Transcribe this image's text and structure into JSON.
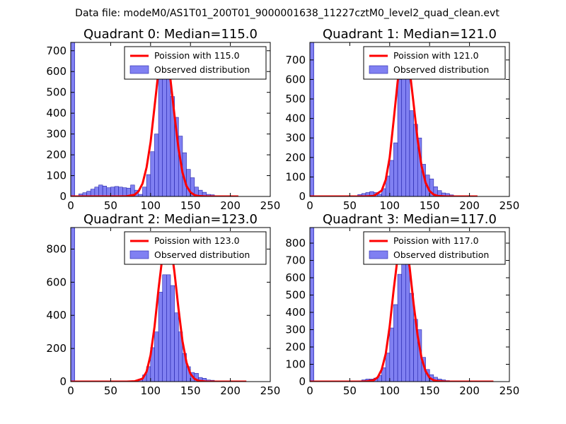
{
  "suptitle": "Data file: modeM0/AS1T01_200T01_9000001638_11227cztM0_level2_quad_clean.evt",
  "colors": {
    "bar_fill": "#8080f2",
    "bar_stroke": "#2222aa",
    "poisson_line": "#ff0000",
    "axis": "#000000"
  },
  "chart_data": [
    {
      "type": "bar",
      "title": "Quadrant 0: Median=115.0",
      "xlim": [
        0,
        250
      ],
      "ylim": [
        0,
        740
      ],
      "xticks": [
        "0",
        "50",
        "100",
        "150",
        "200",
        "250"
      ],
      "yticks": [
        "0",
        "100",
        "200",
        "300",
        "400",
        "500",
        "600",
        "700"
      ],
      "legend": {
        "position": "top-right",
        "line_label": "Poission with 115.0",
        "bar_label": "Observed distribution"
      },
      "bin_width": 5,
      "bin_starts": [
        0,
        5,
        10,
        15,
        20,
        25,
        30,
        35,
        40,
        45,
        50,
        55,
        60,
        65,
        70,
        75,
        80,
        85,
        90,
        95,
        100,
        105,
        110,
        115,
        120,
        125,
        130,
        135,
        140,
        145,
        150,
        155,
        160,
        165,
        170,
        175,
        180,
        185,
        190,
        195,
        200,
        205,
        210
      ],
      "values": [
        740,
        2,
        12,
        18,
        25,
        35,
        45,
        55,
        50,
        42,
        45,
        48,
        45,
        42,
        40,
        55,
        30,
        10,
        45,
        105,
        215,
        300,
        590,
        690,
        600,
        480,
        380,
        290,
        210,
        130,
        90,
        45,
        30,
        20,
        10,
        8,
        4,
        3,
        2,
        1,
        0,
        0,
        0
      ],
      "poisson": {
        "mean": 115,
        "x": [
          0,
          60,
          70,
          80,
          85,
          90,
          95,
          100,
          105,
          110,
          115,
          120,
          125,
          130,
          135,
          140,
          145,
          150,
          155,
          160,
          170,
          180,
          190,
          200,
          210
        ],
        "y": [
          0,
          0,
          1,
          8,
          25,
          62,
          140,
          260,
          430,
          605,
          710,
          695,
          560,
          390,
          230,
          115,
          50,
          20,
          7,
          2,
          0,
          0,
          0,
          0,
          0
        ]
      }
    },
    {
      "type": "bar",
      "title": "Quadrant 1: Median=121.0",
      "xlim": [
        0,
        250
      ],
      "ylim": [
        0,
        790
      ],
      "xticks": [
        "0",
        "50",
        "100",
        "150",
        "200",
        "250"
      ],
      "yticks": [
        "0",
        "100",
        "200",
        "300",
        "400",
        "500",
        "600",
        "700"
      ],
      "legend": {
        "position": "top-right",
        "line_label": "Poission with 121.0",
        "bar_label": "Observed distribution"
      },
      "bin_width": 5,
      "bin_starts": [
        0,
        5,
        10,
        15,
        20,
        25,
        30,
        35,
        40,
        45,
        50,
        55,
        60,
        65,
        70,
        75,
        80,
        85,
        90,
        95,
        100,
        105,
        110,
        115,
        120,
        125,
        130,
        135,
        140,
        145,
        150,
        155,
        160,
        165,
        170,
        175,
        180,
        185,
        190,
        195,
        200,
        205,
        210
      ],
      "values": [
        790,
        0,
        0,
        2,
        2,
        3,
        4,
        2,
        3,
        2,
        3,
        4,
        10,
        15,
        20,
        25,
        20,
        12,
        40,
        105,
        185,
        275,
        600,
        740,
        740,
        440,
        370,
        300,
        165,
        110,
        90,
        50,
        30,
        18,
        15,
        8,
        4,
        2,
        1,
        1,
        0,
        0,
        0
      ],
      "poisson": {
        "mean": 121,
        "x": [
          0,
          70,
          80,
          90,
          95,
          100,
          105,
          110,
          115,
          120,
          125,
          130,
          135,
          140,
          145,
          150,
          155,
          160,
          170,
          180,
          190,
          200,
          210
        ],
        "y": [
          0,
          0,
          3,
          30,
          85,
          200,
          390,
          590,
          730,
          745,
          650,
          475,
          290,
          155,
          70,
          28,
          10,
          3,
          0,
          0,
          0,
          0,
          0
        ]
      }
    },
    {
      "type": "bar",
      "title": "Quadrant 2: Median=123.0",
      "xlim": [
        0,
        250
      ],
      "ylim": [
        0,
        930
      ],
      "xticks": [
        "0",
        "50",
        "100",
        "150",
        "200",
        "250"
      ],
      "yticks": [
        "0",
        "200",
        "400",
        "600",
        "800"
      ],
      "legend": {
        "position": "top-right",
        "line_label": "Poission with 123.0",
        "bar_label": "Observed distribution"
      },
      "bin_width": 5,
      "bin_starts": [
        0,
        5,
        10,
        15,
        20,
        25,
        30,
        35,
        40,
        45,
        50,
        55,
        60,
        65,
        70,
        75,
        80,
        85,
        90,
        95,
        100,
        105,
        110,
        115,
        120,
        125,
        130,
        135,
        140,
        145,
        150,
        155,
        160,
        165,
        170,
        175,
        180,
        185,
        190,
        195,
        200,
        205,
        210,
        215
      ],
      "values": [
        930,
        0,
        0,
        0,
        0,
        0,
        0,
        0,
        0,
        1,
        1,
        1,
        2,
        2,
        3,
        5,
        6,
        15,
        40,
        90,
        205,
        300,
        540,
        645,
        645,
        580,
        415,
        300,
        170,
        90,
        55,
        50,
        25,
        20,
        10,
        8,
        3,
        2,
        1,
        1,
        0,
        0,
        0,
        0
      ],
      "poisson": {
        "mean": 123,
        "x": [
          0,
          70,
          80,
          90,
          95,
          100,
          105,
          110,
          115,
          120,
          125,
          130,
          135,
          140,
          145,
          150,
          155,
          160,
          170,
          180,
          190,
          200,
          210,
          220
        ],
        "y": [
          0,
          0,
          2,
          18,
          60,
          160,
          330,
          560,
          760,
          880,
          840,
          660,
          440,
          245,
          115,
          47,
          17,
          5,
          0,
          0,
          0,
          0,
          0,
          0
        ]
      }
    },
    {
      "type": "bar",
      "title": "Quadrant 3: Median=117.0",
      "xlim": [
        0,
        250
      ],
      "ylim": [
        0,
        890
      ],
      "xticks": [
        "0",
        "50",
        "100",
        "150",
        "200",
        "250"
      ],
      "yticks": [
        "0",
        "100",
        "200",
        "300",
        "400",
        "500",
        "600",
        "700",
        "800"
      ],
      "legend": {
        "position": "top-right",
        "line_label": "Poission with 117.0",
        "bar_label": "Observed distribution"
      },
      "bin_width": 5,
      "bin_starts": [
        0,
        5,
        10,
        15,
        20,
        25,
        30,
        35,
        40,
        45,
        50,
        55,
        60,
        65,
        70,
        75,
        80,
        85,
        90,
        95,
        100,
        105,
        110,
        115,
        120,
        125,
        130,
        135,
        140,
        145,
        150,
        155,
        160,
        165,
        170,
        175,
        180,
        185,
        190,
        195,
        200,
        205,
        210,
        215,
        220,
        225
      ],
      "values": [
        890,
        0,
        0,
        0,
        0,
        0,
        0,
        0,
        0,
        0,
        1,
        2,
        5,
        10,
        15,
        15,
        20,
        35,
        80,
        165,
        310,
        445,
        620,
        740,
        740,
        510,
        360,
        300,
        140,
        70,
        40,
        25,
        15,
        10,
        6,
        4,
        2,
        1,
        1,
        0,
        0,
        0,
        0,
        0,
        0,
        0
      ],
      "poisson": {
        "mean": 117,
        "x": [
          0,
          60,
          70,
          80,
          85,
          90,
          95,
          100,
          105,
          110,
          115,
          120,
          125,
          130,
          135,
          140,
          145,
          150,
          155,
          160,
          170,
          180,
          190,
          200,
          210,
          220,
          230
        ],
        "y": [
          0,
          0,
          1,
          8,
          25,
          70,
          160,
          320,
          530,
          720,
          820,
          810,
          660,
          450,
          265,
          135,
          60,
          22,
          8,
          3,
          0,
          0,
          0,
          0,
          0,
          0,
          0
        ]
      }
    }
  ]
}
